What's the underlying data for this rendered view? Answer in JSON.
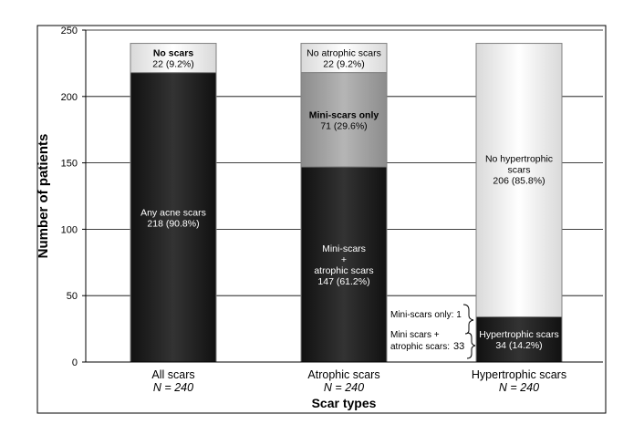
{
  "chart_data": {
    "type": "bar",
    "stacked": true,
    "ylabel": "Number of patients",
    "xlabel": "Scar types",
    "ylim": [
      0,
      250
    ],
    "yticks": [
      0,
      50,
      100,
      150,
      200,
      250
    ],
    "grid": true,
    "categories": [
      {
        "name": "All scars",
        "n": "N = 240"
      },
      {
        "name": "Atrophic scars",
        "n": "N = 240"
      },
      {
        "name": "Hypertrophic scars",
        "n": "N = 240"
      }
    ],
    "bars": [
      {
        "segments": [
          {
            "value": 218,
            "style": "dark",
            "lines": [
              "Any acne scars",
              "218 (90.8%)"
            ]
          },
          {
            "value": 22,
            "style": "light",
            "bold_first": true,
            "lines": [
              "No scars",
              "22 (9.2%)"
            ]
          }
        ]
      },
      {
        "segments": [
          {
            "value": 147,
            "style": "dark",
            "lines": [
              "Mini-scars",
              "+",
              "atrophic scars",
              "147 (61.2%)"
            ]
          },
          {
            "value": 71,
            "style": "mid",
            "bold_first": true,
            "lines": [
              "Mini-scars only",
              "71 (29.6%)"
            ]
          },
          {
            "value": 22,
            "style": "light",
            "lines": [
              "No atrophic scars",
              "22 (9.2%)"
            ]
          }
        ]
      },
      {
        "segments": [
          {
            "value": 34,
            "style": "dark",
            "lines": [
              "Hypertrophic scars",
              "34 (14.2%)"
            ]
          },
          {
            "value": 206,
            "style": "light",
            "lines": [
              "No hypertrophic",
              "scars",
              "206 (85.8%)"
            ]
          }
        ]
      }
    ],
    "annotations": {
      "mini_only_label": "Mini-scars only: 1",
      "mini_atrophic_label_1": "Mini scars +",
      "mini_atrophic_label_2": "atrophic scars:",
      "mini_atrophic_value": "33"
    },
    "colors": {
      "dark": "#262626",
      "mid": "#a6a6a6",
      "light": "#f2f2f2",
      "axis": "#000000",
      "grid": "#000000"
    }
  }
}
